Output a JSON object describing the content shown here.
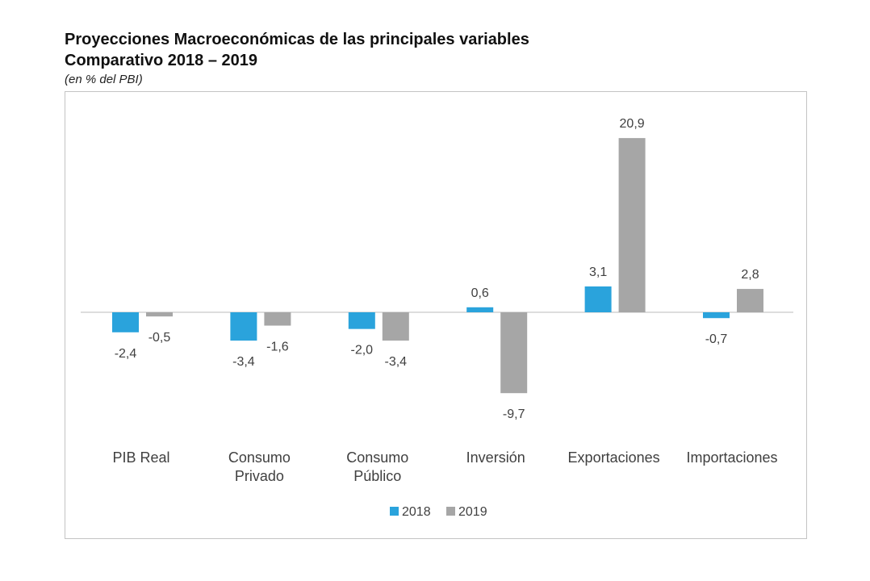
{
  "chart_data": {
    "type": "bar",
    "title": "Proyecciones Macroeconómicas de las principales variables",
    "subtitle": "Comparativo 2018 – 2019",
    "note": "(en % del PBI)",
    "categories": [
      "PIB Real",
      "Consumo Privado",
      "Consumo Público",
      "Inversión",
      "Exportaciones",
      "Importaciones"
    ],
    "series": [
      {
        "name": "2018",
        "color": "#2aa3dc",
        "values": [
          -2.4,
          -3.4,
          -2.0,
          0.6,
          3.1,
          -0.7
        ]
      },
      {
        "name": "2019",
        "color": "#a6a6a6",
        "values": [
          -0.5,
          -1.6,
          -3.4,
          -9.7,
          20.9,
          2.8
        ]
      }
    ],
    "value_labels": true,
    "grid": false,
    "y_axis_shown": false,
    "legend": "bottom-center"
  }
}
